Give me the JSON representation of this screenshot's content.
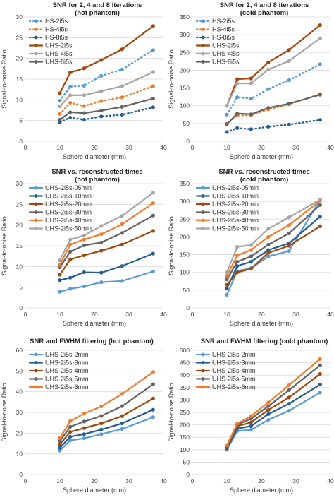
{
  "chart_data": [
    {
      "type": "line",
      "title": "SNR for 2, 4 and 8 iterations\n(hot phantom)",
      "xlabel": "Sphere diameter (mm)",
      "ylabel": "Signal-to-noise Ratio",
      "xlim": [
        0,
        40
      ],
      "ylim": [
        0,
        30
      ],
      "xticks": [
        0,
        10,
        20,
        30,
        40
      ],
      "yticks": [
        0,
        5,
        10,
        15,
        20,
        25,
        30
      ],
      "grid": "horizontal",
      "legend": "top-left",
      "x": [
        10,
        13,
        17,
        22,
        28,
        37
      ],
      "series": [
        {
          "name": "HS-2i5s",
          "color": "#5b9bd5",
          "style": "dotted",
          "values": [
            9.8,
            13.2,
            13.4,
            15.8,
            17.3,
            22.0
          ]
        },
        {
          "name": "HS-4i5s",
          "color": "#ed7d31",
          "style": "dotted",
          "values": [
            6.6,
            9.3,
            8.5,
            9.7,
            10.6,
            13.3
          ]
        },
        {
          "name": "HS-8i5s",
          "color": "#255e91",
          "style": "dotted",
          "values": [
            4.6,
            5.7,
            5.2,
            6.0,
            6.4,
            8.2
          ]
        },
        {
          "name": "UHS-2i5s",
          "color": "#9e480e",
          "style": "solid",
          "values": [
            11.6,
            16.6,
            17.6,
            19.6,
            22.2,
            27.8
          ]
        },
        {
          "name": "UHS-4i5s",
          "color": "#a5a5a5",
          "style": "solid",
          "values": [
            8.4,
            11.1,
            11.1,
            12.1,
            13.3,
            16.7
          ]
        },
        {
          "name": "UHS-8i5s",
          "color": "#636363",
          "style": "solid",
          "values": [
            5.2,
            7.0,
            6.8,
            7.4,
            8.3,
            10.3
          ]
        }
      ]
    },
    {
      "type": "line",
      "title": "SNR for 2, 4 and 8 iterations\n(cold phantom)",
      "xlabel": "Sphere diameter (mm)",
      "ylabel": "Signal-to-noise Ratio",
      "xlim": [
        0,
        40
      ],
      "ylim": [
        0,
        350
      ],
      "xticks": [
        0,
        10,
        20,
        30,
        40
      ],
      "yticks": [
        0,
        50,
        100,
        150,
        200,
        250,
        300,
        350
      ],
      "grid": "horizontal",
      "legend": "top-left",
      "x": [
        10,
        13,
        17,
        22,
        28,
        37
      ],
      "series": [
        {
          "name": "HS-2i5s",
          "color": "#5b9bd5",
          "style": "dotted",
          "values": [
            75,
            124,
            120,
            147,
            172,
            217
          ]
        },
        {
          "name": "HS-4i5s",
          "color": "#ed7d31",
          "style": "dotted",
          "values": [
            49,
            73,
            73,
            90,
            104,
            133
          ]
        },
        {
          "name": "HS-8i5s",
          "color": "#255e91",
          "style": "dotted",
          "values": [
            26,
            37,
            34,
            41,
            47,
            60
          ]
        },
        {
          "name": "UHS-2i5s",
          "color": "#9e480e",
          "style": "solid",
          "values": [
            100,
            175,
            177,
            222,
            257,
            327
          ]
        },
        {
          "name": "UHS-4i5s",
          "color": "#a5a5a5",
          "style": "solid",
          "values": [
            100,
            163,
            163,
            202,
            226,
            290
          ]
        },
        {
          "name": "UHS-8i5s",
          "color": "#636363",
          "style": "solid",
          "values": [
            48,
            78,
            76,
            94,
            106,
            131
          ]
        }
      ]
    },
    {
      "type": "line",
      "title": "SNR vs. reconstructed times\n(hot phantom)",
      "xlabel": "Sphere diameter (mm)",
      "ylabel": "Signal-to-noise Ratio",
      "xlim": [
        0,
        40
      ],
      "ylim": [
        0,
        30
      ],
      "xticks": [
        0,
        10,
        20,
        30,
        40
      ],
      "yticks": [
        0,
        5,
        10,
        15,
        20,
        25,
        30
      ],
      "grid": "horizontal",
      "legend": "top-left",
      "x": [
        10,
        13,
        17,
        22,
        28,
        37
      ],
      "series": [
        {
          "name": "UHS-2i5s-05min",
          "color": "#5b9bd5",
          "style": "solid",
          "values": [
            3.9,
            4.6,
            5.2,
            6.2,
            6.5,
            8.8
          ]
        },
        {
          "name": "UHS-2i5s-10min",
          "color": "#255e91",
          "style": "solid",
          "values": [
            6.7,
            7.3,
            8.6,
            8.5,
            10.1,
            13.1
          ]
        },
        {
          "name": "UHS-2i5s-20min",
          "color": "#9e480e",
          "style": "solid",
          "values": [
            8.0,
            11.7,
            12.7,
            13.8,
            15.3,
            18.6
          ]
        },
        {
          "name": "UHS-2i5s-30min",
          "color": "#636363",
          "style": "solid",
          "values": [
            9.8,
            13.6,
            15.1,
            15.8,
            18.1,
            22.3
          ]
        },
        {
          "name": "UHS-2i5s-40min",
          "color": "#ed7d31",
          "style": "solid",
          "values": [
            10.4,
            15.3,
            16.5,
            17.8,
            20.2,
            25.3
          ]
        },
        {
          "name": "UHS-2i5s-50min",
          "color": "#a5a5a5",
          "style": "solid",
          "values": [
            11.5,
            16.5,
            17.5,
            19.8,
            22.2,
            27.8
          ]
        }
      ]
    },
    {
      "type": "line",
      "title": "SNR vs. reconstructed times\n(cold phantom)",
      "xlabel": "Sphere diameter (mm)",
      "ylabel": "Signal-to-noise Ratio",
      "xlim": [
        0,
        40
      ],
      "ylim": [
        0,
        350
      ],
      "xticks": [
        0,
        10,
        20,
        30,
        40
      ],
      "yticks": [
        0,
        50,
        100,
        150,
        200,
        250,
        300,
        350
      ],
      "grid": "horizontal",
      "legend": "top-left",
      "x": [
        10,
        13,
        17,
        22,
        28,
        37
      ],
      "series": [
        {
          "name": "UHS-2i5s-05min",
          "color": "#5b9bd5",
          "style": "solid",
          "values": [
            37,
            104,
            112,
            145,
            160,
            305
          ]
        },
        {
          "name": "UHS-2i5s-10min",
          "color": "#255e91",
          "style": "solid",
          "values": [
            55,
            118,
            130,
            163,
            182,
            257
          ]
        },
        {
          "name": "UHS-2i5s-20min",
          "color": "#9e480e",
          "style": "solid",
          "values": [
            65,
            100,
            110,
            155,
            175,
            230
          ]
        },
        {
          "name": "UHS-2i5s-30min",
          "color": "#636363",
          "style": "solid",
          "values": [
            80,
            130,
            145,
            178,
            210,
            290
          ]
        },
        {
          "name": "UHS-2i5s-40min",
          "color": "#ed7d31",
          "style": "solid",
          "values": [
            90,
            148,
            163,
            200,
            233,
            302
          ]
        },
        {
          "name": "UHS-2i5s-50min",
          "color": "#a5a5a5",
          "style": "solid",
          "values": [
            100,
            172,
            177,
            223,
            255,
            305
          ]
        }
      ]
    },
    {
      "type": "line",
      "title": "SNR and FWHM filtering (hot phantom)",
      "xlabel": "Sphere diameter (mm)",
      "ylabel": "Signal-to-noise Ratio",
      "xlim": [
        0,
        40
      ],
      "ylim": [
        0,
        60
      ],
      "xticks": [
        0,
        10,
        20,
        30,
        40
      ],
      "yticks": [
        0,
        10,
        20,
        30,
        40,
        50,
        60
      ],
      "grid": "horizontal",
      "legend": "top-left",
      "x": [
        10,
        13,
        17,
        22,
        28,
        37
      ],
      "series": [
        {
          "name": "UHS-2i5s-2mm",
          "color": "#5b9bd5",
          "style": "solid",
          "values": [
            11.6,
            16.5,
            17.5,
            19.5,
            22.0,
            27.7
          ]
        },
        {
          "name": "UHS-2i5s-3mm",
          "color": "#255e91",
          "style": "solid",
          "values": [
            12.9,
            18.3,
            19.5,
            21.7,
            24.7,
            31.3
          ]
        },
        {
          "name": "UHS-2i5s-4mm",
          "color": "#9e480e",
          "style": "solid",
          "values": [
            14.6,
            20.6,
            22.4,
            24.7,
            28.2,
            36.7
          ]
        },
        {
          "name": "UHS-2i5s-5mm",
          "color": "#636363",
          "style": "solid",
          "values": [
            16.2,
            23.1,
            25.6,
            28.3,
            33.0,
            43.6
          ]
        },
        {
          "name": "UHS-2i5s-6mm",
          "color": "#ed7d31",
          "style": "solid",
          "values": [
            17.6,
            25.8,
            29.4,
            32.9,
            38.9,
            49.5
          ]
        }
      ]
    },
    {
      "type": "line",
      "title": "SNR and FWHM filtering (cold phantom)",
      "xlabel": "Sphere diameter (mm)",
      "ylabel": "Signal-to-noise Ratio",
      "xlim": [
        0,
        40
      ],
      "ylim": [
        0,
        500
      ],
      "xticks": [
        0,
        10,
        20,
        30,
        40
      ],
      "yticks": [
        0,
        50,
        100,
        150,
        200,
        250,
        300,
        350,
        400,
        450,
        500
      ],
      "grid": "horizontal",
      "legend": "top-left",
      "x": [
        10,
        13,
        17,
        22,
        28,
        37
      ],
      "series": [
        {
          "name": "UHS-2i5s-2mm",
          "color": "#5b9bd5",
          "style": "solid",
          "values": [
            100,
            175,
            180,
            220,
            257,
            330
          ]
        },
        {
          "name": "UHS-2i5s-3mm",
          "color": "#255e91",
          "style": "solid",
          "values": [
            105,
            185,
            195,
            243,
            285,
            362
          ]
        },
        {
          "name": "UHS-2i5s-4mm",
          "color": "#9e480e",
          "style": "solid",
          "values": [
            108,
            195,
            210,
            260,
            310,
            405
          ]
        },
        {
          "name": "UHS-2i5s-5mm",
          "color": "#636363",
          "style": "solid",
          "values": [
            112,
            200,
            225,
            275,
            340,
            440
          ]
        },
        {
          "name": "UHS-2i5s-6mm",
          "color": "#ed7d31",
          "style": "solid",
          "values": [
            118,
            205,
            235,
            290,
            360,
            465
          ]
        }
      ]
    }
  ]
}
